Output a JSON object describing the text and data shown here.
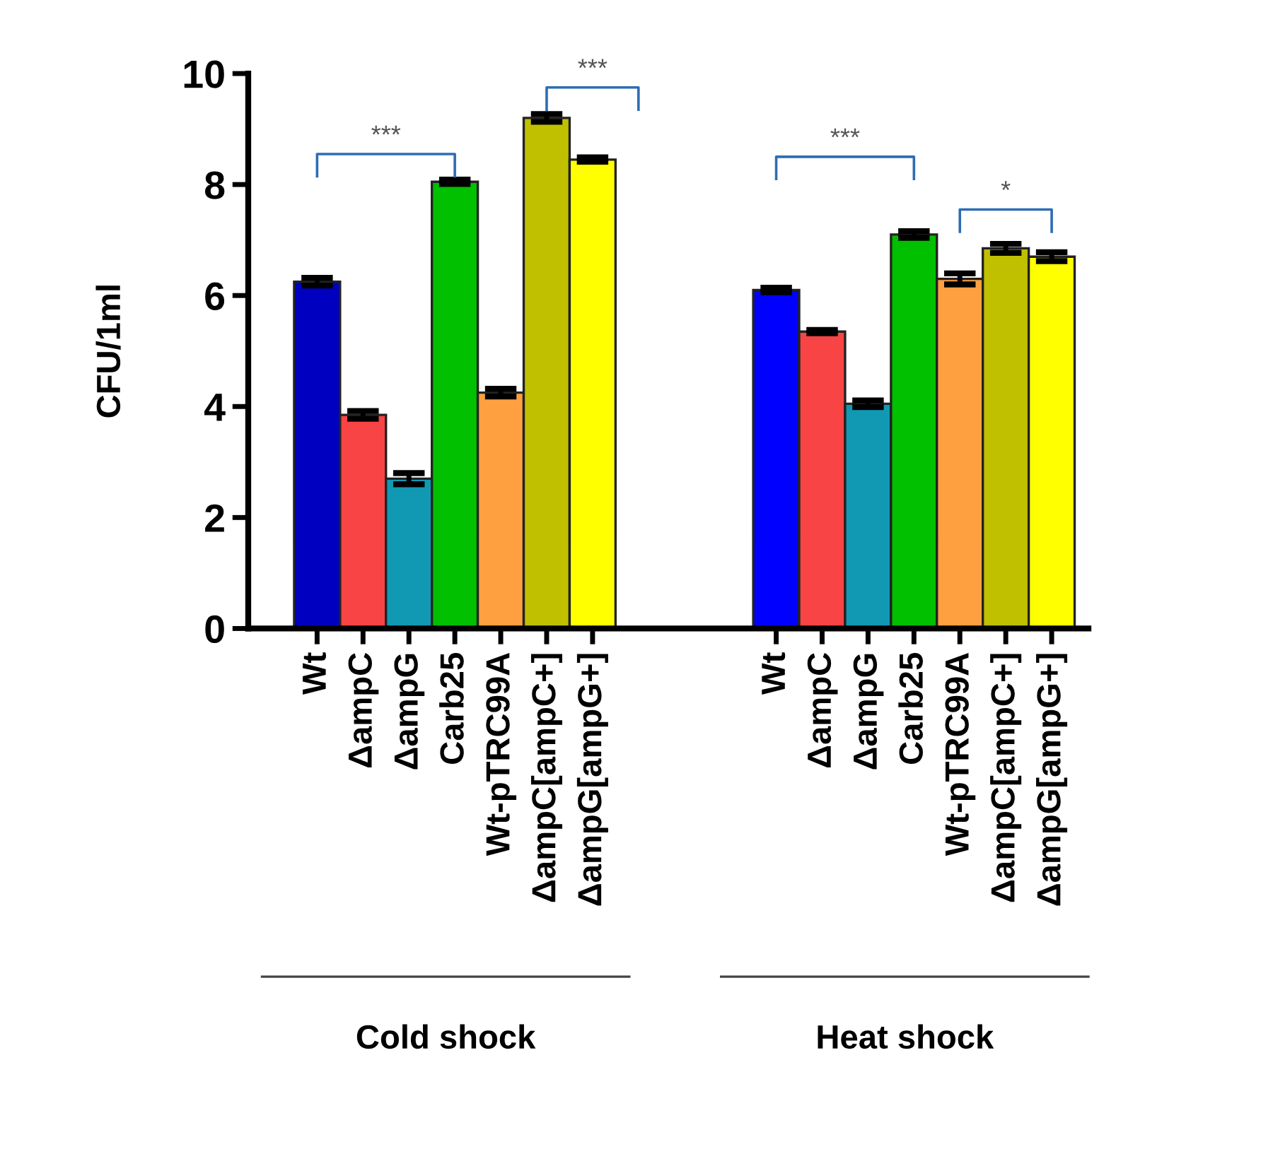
{
  "chart_data": {
    "type": "bar",
    "ylabel": "CFU/1ml",
    "categories": [
      "Wt",
      "ΔampC",
      "ΔampG",
      "Carb25",
      "Wt-pTRC99A",
      "ΔampC[ampC+]",
      "ΔampG[ampG+]",
      null,
      null,
      null,
      "Wt",
      "ΔampC",
      "ΔampG",
      "Carb25",
      "Wt-pTRC99A",
      "ΔampC[ampC+]",
      "ΔampG[ampG+]"
    ],
    "values": [
      6.25,
      3.85,
      2.7,
      8.05,
      4.25,
      9.2,
      8.45,
      null,
      null,
      null,
      6.1,
      5.35,
      4.05,
      7.1,
      6.3,
      6.85,
      6.7
    ],
    "errors": [
      0.07,
      0.07,
      0.1,
      0.04,
      0.07,
      0.07,
      0.04,
      null,
      null,
      null,
      0.04,
      0.03,
      0.06,
      0.06,
      0.1,
      0.08,
      0.08
    ],
    "colors": [
      "#0000c0",
      "#f84444",
      "#1199b4",
      "#00c000",
      "#ffa040",
      "#c0c000",
      "#ffff00",
      null,
      null,
      null,
      "#0000ff",
      "#f84444",
      "#1199b4",
      "#00c000",
      "#ffa040",
      "#c0c000",
      "#ffff00"
    ],
    "ylim": [
      0,
      10
    ],
    "yticks": [
      0,
      2,
      4,
      6,
      8,
      10
    ],
    "grid": false,
    "legend": false,
    "annotations": [
      "***",
      "***",
      "***",
      "*",
      "Cold shock",
      "Heat shock"
    ]
  }
}
